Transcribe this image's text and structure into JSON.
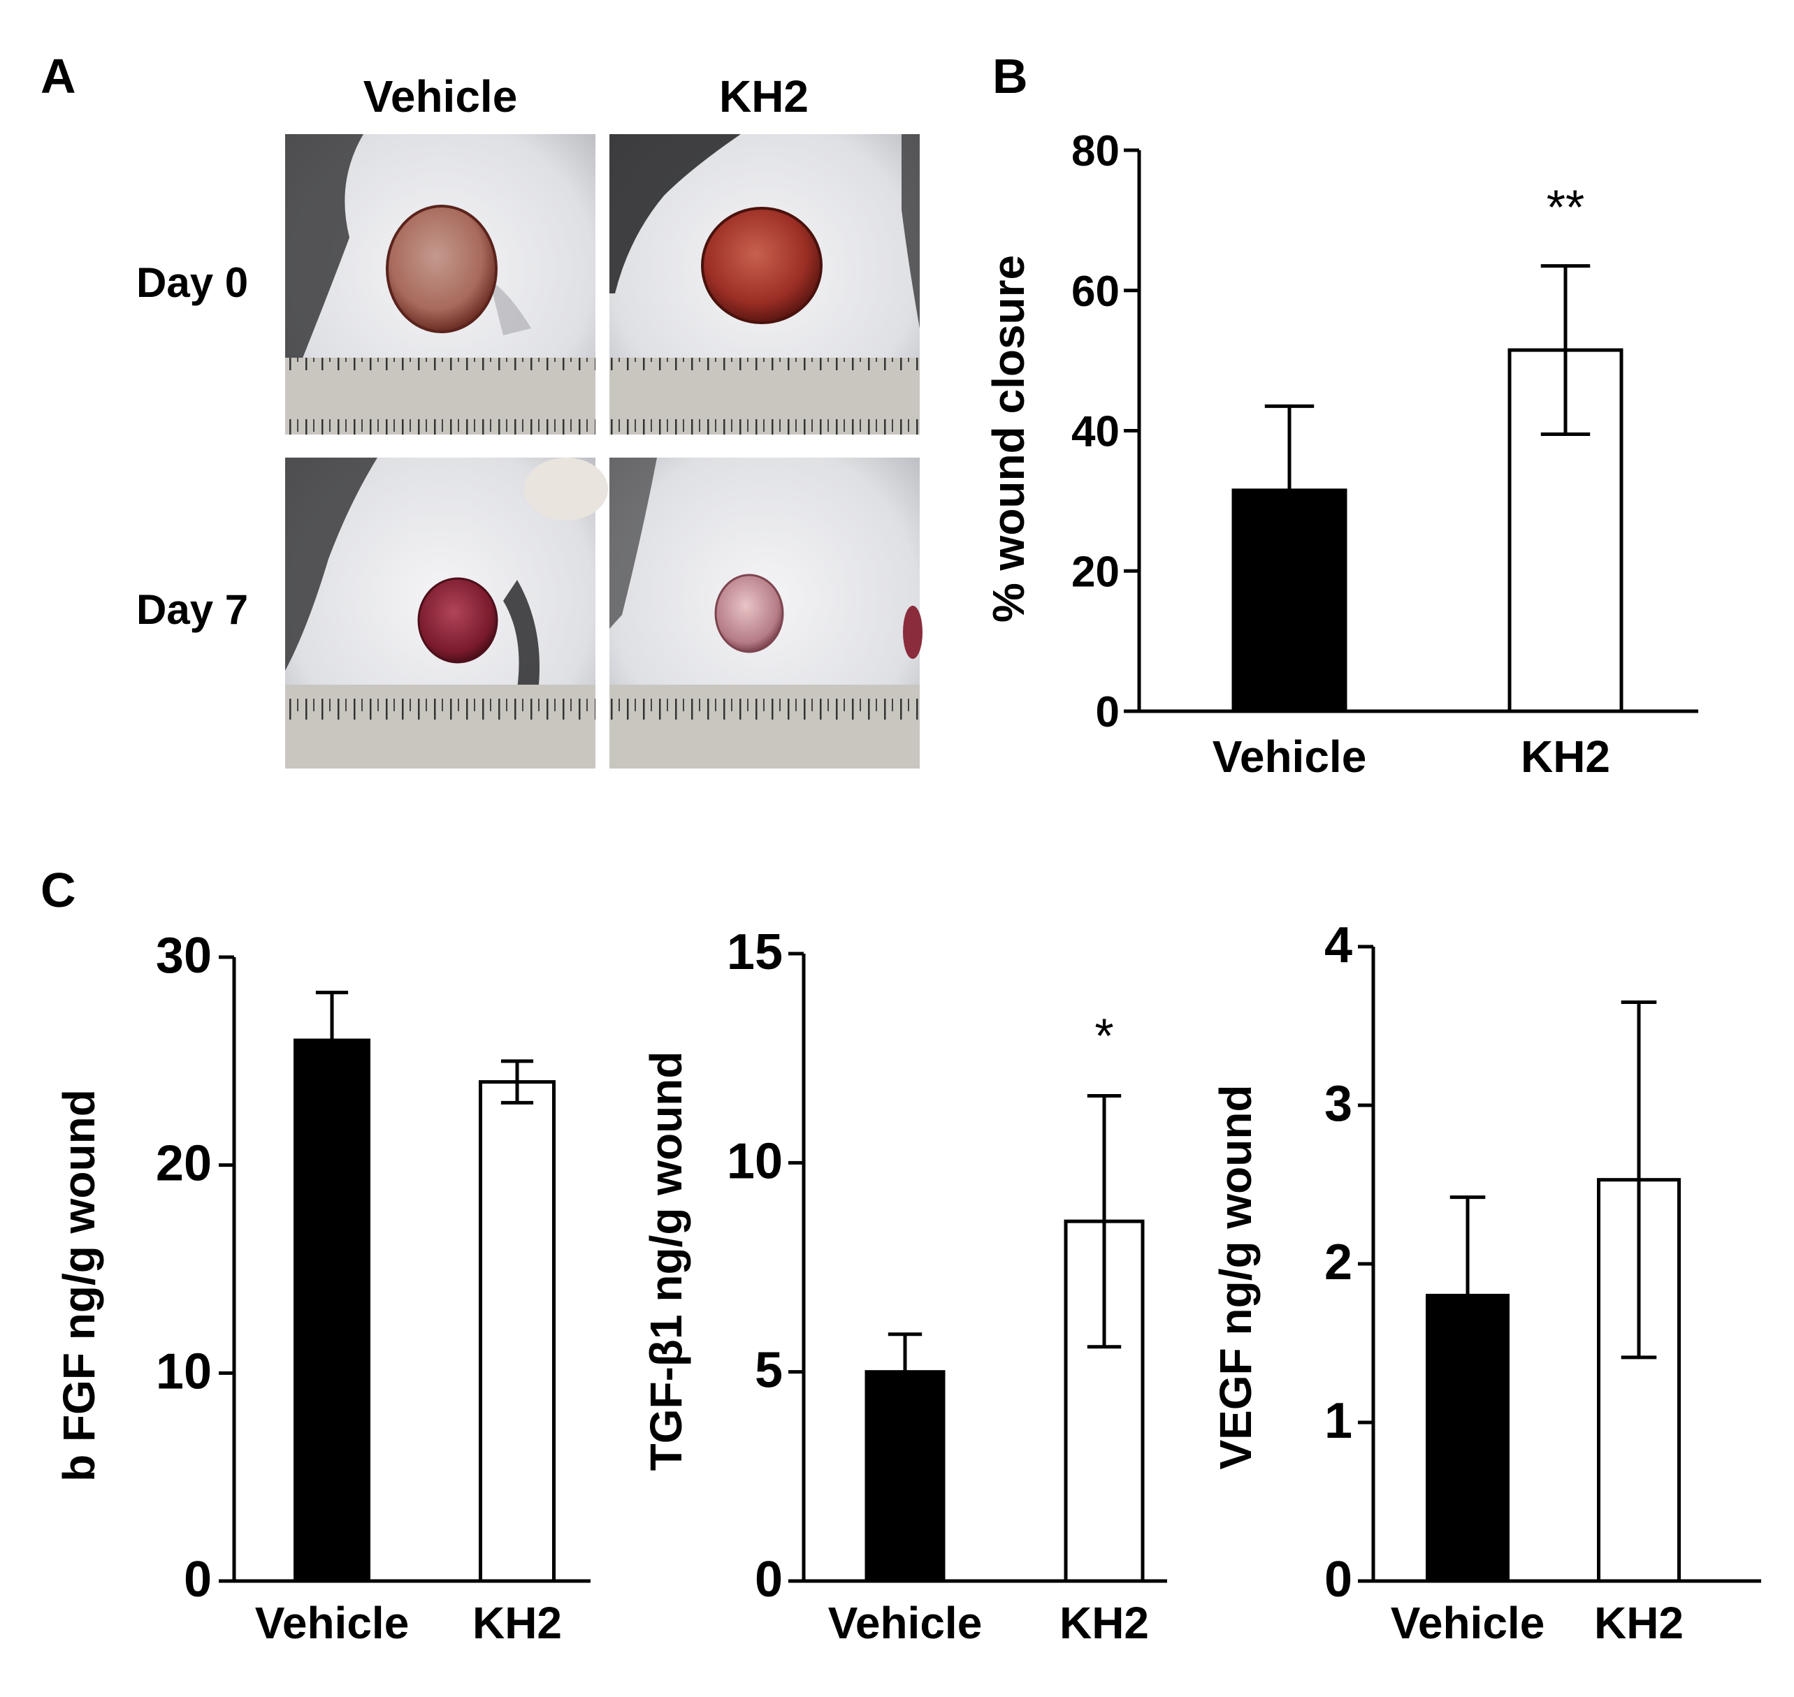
{
  "panels": {
    "A": {
      "letter": "A",
      "columns": [
        "Vehicle",
        "KH2"
      ],
      "rows": [
        "Day 0",
        "Day 7"
      ]
    },
    "B": {
      "letter": "B"
    },
    "C": {
      "letter": "C"
    }
  },
  "colors": {
    "vehicle_fill": "#000000",
    "kh2_fill": "#ffffff",
    "axis": "#000000"
  },
  "chart_data": [
    {
      "id": "B",
      "type": "bar",
      "categories": [
        "Vehicle",
        "KH2"
      ],
      "values": [
        31.5,
        51.5
      ],
      "errors": [
        12,
        12
      ],
      "significance": [
        "",
        "**"
      ],
      "ylabel": "% wound closure",
      "ylim": [
        0,
        80
      ],
      "yticks": [
        0,
        20,
        40,
        60,
        80
      ],
      "grid": false
    },
    {
      "id": "C1",
      "type": "bar",
      "categories": [
        "Vehicle",
        "KH2"
      ],
      "values": [
        26,
        24
      ],
      "errors": [
        2.3,
        1.0
      ],
      "significance": [
        "",
        ""
      ],
      "ylabel": "b FGF  ng/g wound",
      "ylim": [
        0,
        30
      ],
      "yticks": [
        0,
        10,
        20,
        30
      ],
      "grid": false
    },
    {
      "id": "C2",
      "type": "bar",
      "categories": [
        "Vehicle",
        "KH2"
      ],
      "values": [
        5.0,
        8.6
      ],
      "errors": [
        0.9,
        3.0
      ],
      "significance": [
        "",
        "*"
      ],
      "ylabel": "TGF-β1  ng/g wound",
      "ylim": [
        0,
        15
      ],
      "yticks": [
        0,
        5,
        10,
        15
      ],
      "grid": false
    },
    {
      "id": "C3",
      "type": "bar",
      "categories": [
        "Vehicle",
        "KH2"
      ],
      "values": [
        1.8,
        2.53
      ],
      "errors": [
        0.62,
        1.12
      ],
      "significance": [
        "",
        ""
      ],
      "ylabel": "VEGF  ng/g wound",
      "ylim": [
        0,
        4
      ],
      "yticks": [
        0,
        1,
        2,
        3,
        4
      ],
      "grid": false
    }
  ]
}
